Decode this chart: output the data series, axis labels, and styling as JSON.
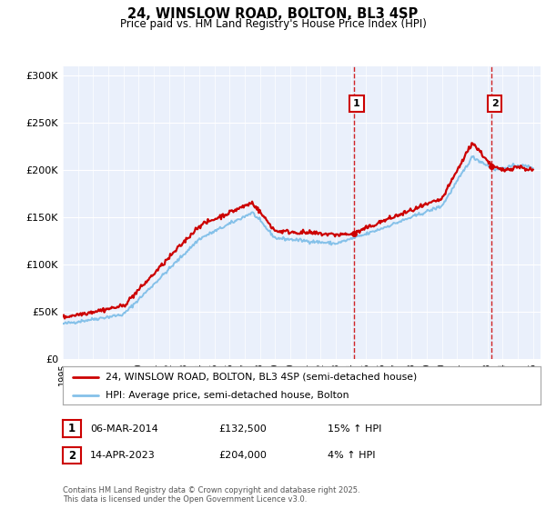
{
  "title": "24, WINSLOW ROAD, BOLTON, BL3 4SP",
  "subtitle": "Price paid vs. HM Land Registry's House Price Index (HPI)",
  "legend_line1": "24, WINSLOW ROAD, BOLTON, BL3 4SP (semi-detached house)",
  "legend_line2": "HPI: Average price, semi-detached house, Bolton",
  "annotation1_label": "1",
  "annotation1_date": "06-MAR-2014",
  "annotation1_price": "£132,500",
  "annotation1_hpi": "15% ↑ HPI",
  "annotation2_label": "2",
  "annotation2_date": "14-APR-2023",
  "annotation2_price": "£204,000",
  "annotation2_hpi": "4% ↑ HPI",
  "footer": "Contains HM Land Registry data © Crown copyright and database right 2025.\nThis data is licensed under the Open Government Licence v3.0.",
  "hpi_color": "#85c1e9",
  "price_color": "#cc0000",
  "vline_color": "#cc0000",
  "bg_color": "#eaf0fb",
  "ylim": [
    0,
    310000
  ],
  "yticks": [
    0,
    50000,
    100000,
    150000,
    200000,
    250000,
    300000
  ],
  "ytick_labels": [
    "£0",
    "£50K",
    "£100K",
    "£150K",
    "£200K",
    "£250K",
    "£300K"
  ],
  "sale1_year": 2014.18,
  "sale1_price": 132500,
  "sale2_year": 2023.28,
  "sale2_price": 204000
}
